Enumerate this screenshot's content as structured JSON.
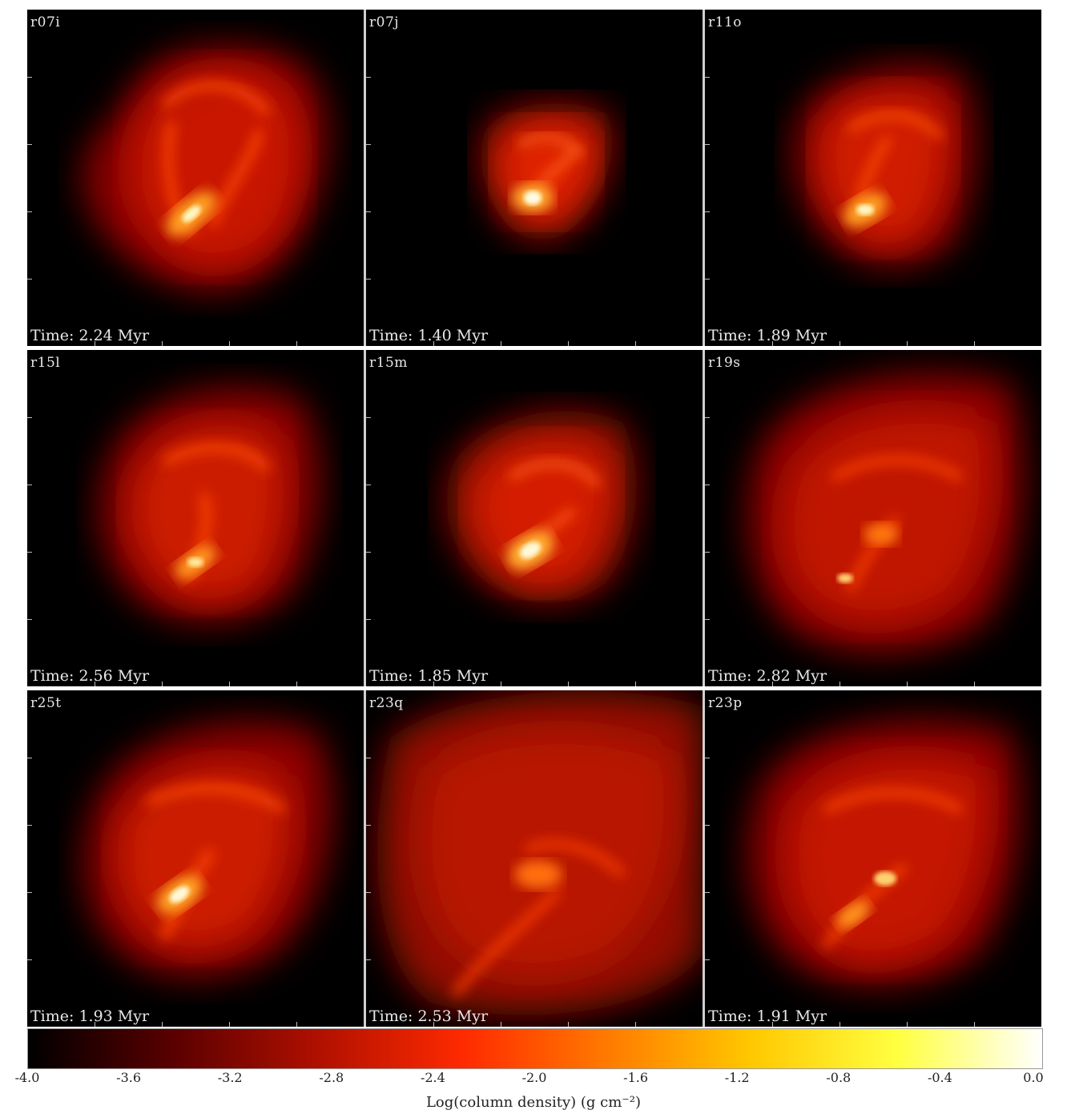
{
  "panels": [
    {
      "label": "r07i",
      "time": "Time: 2.24 Myr"
    },
    {
      "label": "r07j",
      "time": "Time: 1.40 Myr"
    },
    {
      "label": "r11o",
      "time": "Time: 1.89 Myr"
    },
    {
      "label": "r15l",
      "time": "Time: 2.56 Myr"
    },
    {
      "label": "r15m",
      "time": "Time: 1.85 Myr"
    },
    {
      "label": "r19s",
      "time": "Time: 2.82 Myr"
    },
    {
      "label": "r25t",
      "time": "Time: 1.93 Myr"
    },
    {
      "label": "r23q",
      "time": "Time: 2.53 Myr"
    },
    {
      "label": "r23p",
      "time": "Time: 1.91 Myr"
    }
  ],
  "colorbar": {
    "ticks": [
      "-4.0",
      "-3.6",
      "-3.2",
      "-2.8",
      "-2.4",
      "-2.0",
      "-1.6",
      "-1.2",
      "-0.8",
      "-0.4",
      "0.0"
    ],
    "label": "Log(column density) (g cm⁻²)",
    "range": [
      -4.0,
      0.0
    ],
    "colormap": [
      "#000000",
      "#5a0000",
      "#b01000",
      "#ff2a00",
      "#ff7a00",
      "#ffc800",
      "#ffff40",
      "#ffffff"
    ]
  }
}
